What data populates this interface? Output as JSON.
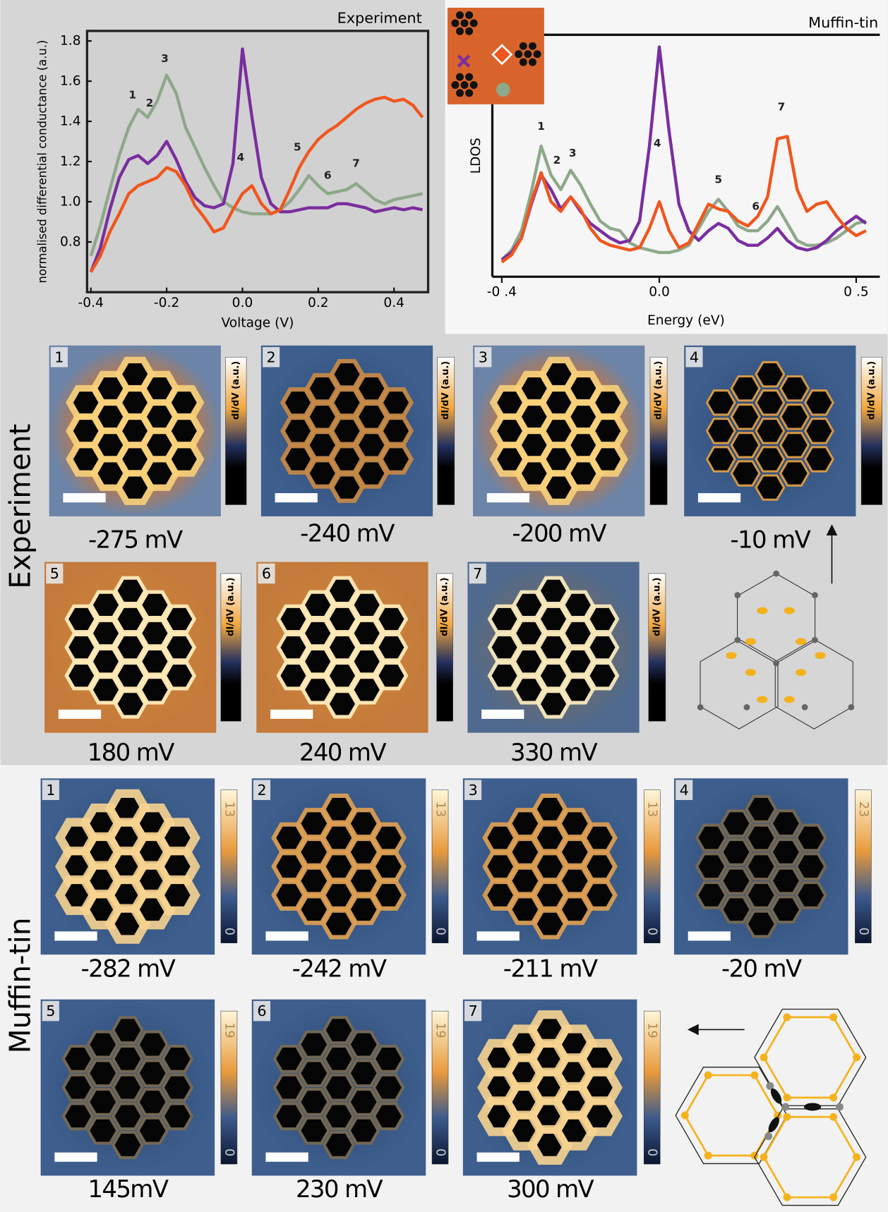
{
  "chart_data": [
    {
      "type": "line",
      "title": "Experiment",
      "xlabel": "Voltage (V)",
      "ylabel": "normalised differential conductance (a.u.)",
      "x": [
        -0.4,
        -0.375,
        -0.35,
        -0.325,
        -0.3,
        -0.275,
        -0.25,
        -0.225,
        -0.2,
        -0.175,
        -0.15,
        -0.125,
        -0.1,
        -0.075,
        -0.05,
        -0.025,
        0,
        0.025,
        0.05,
        0.075,
        0.1,
        0.125,
        0.15,
        0.175,
        0.2,
        0.225,
        0.25,
        0.275,
        0.3,
        0.325,
        0.35,
        0.375,
        0.4,
        0.425,
        0.45,
        0.475
      ],
      "series": [
        {
          "color": "#8ea88a",
          "values": [
            0.73,
            0.88,
            1.06,
            1.23,
            1.37,
            1.46,
            1.42,
            1.5,
            1.63,
            1.54,
            1.37,
            1.27,
            1.17,
            1.08,
            1.0,
            0.97,
            0.95,
            0.94,
            0.94,
            0.94,
            0.96,
            1.0,
            1.06,
            1.13,
            1.08,
            1.04,
            1.05,
            1.06,
            1.09,
            1.05,
            1.01,
            0.99,
            1.01,
            1.02,
            1.03,
            1.04
          ]
        },
        {
          "color": "#7a2e9e",
          "values": [
            0.65,
            0.77,
            0.96,
            1.12,
            1.21,
            1.23,
            1.19,
            1.23,
            1.3,
            1.21,
            1.1,
            1.02,
            0.98,
            0.97,
            0.99,
            1.19,
            1.76,
            1.42,
            1.12,
            0.99,
            0.95,
            0.95,
            0.96,
            0.97,
            0.97,
            0.97,
            0.99,
            0.99,
            0.98,
            0.97,
            0.95,
            0.96,
            0.97,
            0.96,
            0.97,
            0.96
          ]
        },
        {
          "color": "#f0561e",
          "values": [
            0.65,
            0.73,
            0.85,
            0.94,
            1.04,
            1.08,
            1.1,
            1.12,
            1.17,
            1.15,
            1.08,
            0.98,
            0.92,
            0.85,
            0.87,
            0.96,
            1.04,
            1.08,
            0.99,
            0.94,
            0.96,
            1.06,
            1.17,
            1.25,
            1.31,
            1.35,
            1.38,
            1.42,
            1.46,
            1.49,
            1.51,
            1.52,
            1.5,
            1.51,
            1.48,
            1.42
          ]
        }
      ],
      "annotations": [
        {
          "text": "1",
          "x": -0.29,
          "y": 1.53
        },
        {
          "text": "2",
          "x": -0.245,
          "y": 1.49
        },
        {
          "text": "3",
          "x": -0.205,
          "y": 1.71
        },
        {
          "text": "4",
          "x": -0.005,
          "y": 1.22
        },
        {
          "text": "5",
          "x": 0.145,
          "y": 1.27
        },
        {
          "text": "6",
          "x": 0.225,
          "y": 1.13
        },
        {
          "text": "7",
          "x": 0.3,
          "y": 1.19
        }
      ],
      "xlim": [
        -0.41,
        0.49
      ],
      "ylim": [
        0.55,
        1.85
      ],
      "xticks": [
        -0.4,
        -0.2,
        {
          "value": 0,
          "label": "0.0"
        },
        0.2,
        0.4
      ],
      "yticks": [
        0.8,
        {
          "value": 1,
          "label": "1.0"
        },
        1.2,
        1.4,
        1.6,
        1.8
      ]
    },
    {
      "type": "line",
      "title": "Muffin-tin",
      "xlabel": "Energy (eV)",
      "ylabel": "LDOS",
      "x": [
        -0.4,
        -0.375,
        -0.35,
        -0.325,
        -0.3,
        -0.275,
        -0.25,
        -0.225,
        -0.2,
        -0.175,
        -0.15,
        -0.125,
        -0.1,
        -0.075,
        -0.05,
        -0.025,
        0,
        0.025,
        0.05,
        0.075,
        0.1,
        0.125,
        0.15,
        0.175,
        0.2,
        0.225,
        0.25,
        0.275,
        0.3,
        0.325,
        0.35,
        0.375,
        0.4,
        0.425,
        0.45,
        0.475,
        0.5,
        0.525
      ],
      "series": [
        {
          "color": "#8ea88a",
          "values": [
            0.07,
            0.11,
            0.19,
            0.35,
            0.54,
            0.42,
            0.36,
            0.44,
            0.38,
            0.3,
            0.23,
            0.2,
            0.19,
            0.14,
            0.12,
            0.11,
            0.1,
            0.1,
            0.11,
            0.13,
            0.2,
            0.27,
            0.32,
            0.27,
            0.21,
            0.19,
            0.19,
            0.23,
            0.29,
            0.22,
            0.15,
            0.13,
            0.13,
            0.14,
            0.16,
            0.19,
            0.22,
            0.23
          ]
        },
        {
          "color": "#7a2e9e",
          "values": [
            0.07,
            0.1,
            0.16,
            0.3,
            0.42,
            0.36,
            0.28,
            0.33,
            0.27,
            0.22,
            0.19,
            0.16,
            0.14,
            0.15,
            0.23,
            0.54,
            0.95,
            0.6,
            0.3,
            0.19,
            0.15,
            0.19,
            0.22,
            0.2,
            0.15,
            0.13,
            0.13,
            0.16,
            0.2,
            0.15,
            0.12,
            0.11,
            0.12,
            0.15,
            0.19,
            0.22,
            0.25,
            0.22
          ]
        },
        {
          "color": "#f0561e",
          "values": [
            0.06,
            0.09,
            0.16,
            0.31,
            0.43,
            0.31,
            0.27,
            0.33,
            0.28,
            0.2,
            0.15,
            0.13,
            0.12,
            0.11,
            0.12,
            0.2,
            0.31,
            0.19,
            0.12,
            0.14,
            0.22,
            0.3,
            0.28,
            0.27,
            0.23,
            0.21,
            0.25,
            0.33,
            0.57,
            0.58,
            0.36,
            0.27,
            0.3,
            0.31,
            0.25,
            0.2,
            0.17,
            0.19
          ]
        }
      ],
      "annotations": [
        {
          "text": "1",
          "x": -0.3,
          "y": 0.62
        },
        {
          "text": "2",
          "x": -0.26,
          "y": 0.48
        },
        {
          "text": "3",
          "x": -0.22,
          "y": 0.51
        },
        {
          "text": "4",
          "x": -0.005,
          "y": 0.55
        },
        {
          "text": "5",
          "x": 0.15,
          "y": 0.4
        },
        {
          "text": "6",
          "x": 0.245,
          "y": 0.29
        },
        {
          "text": "7",
          "x": 0.31,
          "y": 0.7
        }
      ],
      "xlim": [
        -0.424,
        0.56
      ],
      "ylim": [
        0,
        1
      ],
      "xticks": [
        {
          "value": -0.4,
          "label": "-0 .4"
        },
        {
          "value": 0,
          "label": "0.0"
        },
        {
          "value": 0.5,
          "label": "0 .5"
        }
      ]
    }
  ],
  "experiment": {
    "label": "Experiment",
    "colorbar_label": "dI/dV (a.u.)",
    "panels": [
      {
        "index": "1",
        "energy": "-275 mV"
      },
      {
        "index": "2",
        "energy": "-240 mV"
      },
      {
        "index": "3",
        "energy": "-200 mV"
      },
      {
        "index": "4",
        "energy": "-10 mV"
      },
      {
        "index": "5",
        "energy": "180 mV"
      },
      {
        "index": "6",
        "energy": "240 mV"
      },
      {
        "index": "7",
        "energy": "330 mV"
      }
    ]
  },
  "muffin_tin": {
    "label": "Muffin-tin",
    "panels": [
      {
        "index": "1",
        "energy": "-282 mV",
        "colorbar_max": 13,
        "colorbar_min": 0
      },
      {
        "index": "2",
        "energy": "-242 mV",
        "colorbar_max": 13,
        "colorbar_min": 0
      },
      {
        "index": "3",
        "energy": "-211 mV",
        "colorbar_max": 13,
        "colorbar_min": 0
      },
      {
        "index": "4",
        "energy": "-20 mV",
        "colorbar_max": 23,
        "colorbar_min": 0
      },
      {
        "index": "5",
        "energy": "145mV",
        "colorbar_max": 19,
        "colorbar_min": 0
      },
      {
        "index": "6",
        "energy": "230 mV",
        "colorbar_max": 19,
        "colorbar_min": 0
      },
      {
        "index": "7",
        "energy": "300 mV",
        "colorbar_max": 19,
        "colorbar_min": 0
      }
    ]
  }
}
